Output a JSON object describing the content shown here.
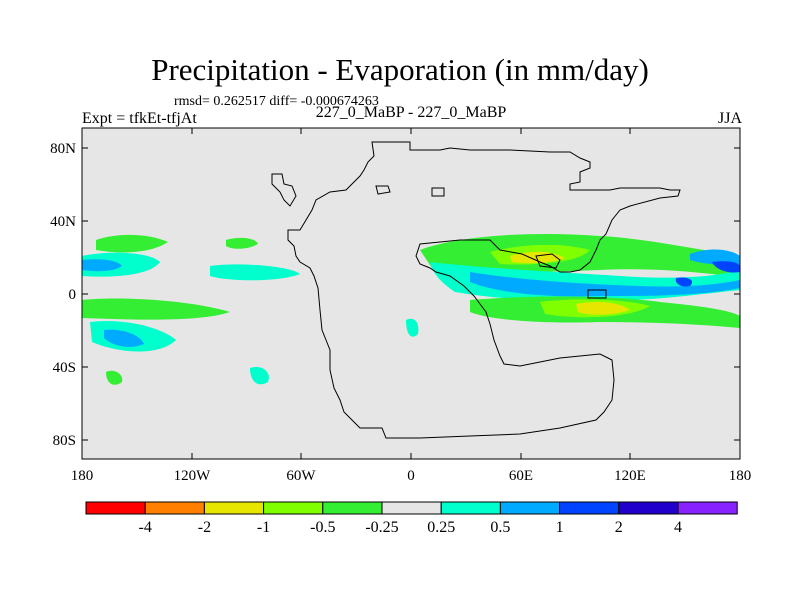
{
  "map": {
    "title": "Precipitation - Evaporation (in mm/day)",
    "stats_line": "rmsd= 0.262517  diff= -0.000674263",
    "left_string": "Expt = tfkEt-tfjAt",
    "center_string": "227_0_MaBP - 227_0_MaBP",
    "right_string": "JJA",
    "lat_ticks": [
      "80N",
      "40N",
      "0",
      "40S",
      "80S"
    ],
    "lon_ticks": [
      "180",
      "120W",
      "60W",
      "0",
      "60E",
      "120E",
      "180"
    ],
    "background_color": "#e6e6e6",
    "coastline_color": "#000000"
  },
  "colorbar": {
    "colors": [
      "#ff0000",
      "#ff8000",
      "#e6e600",
      "#80ff00",
      "#33ee33",
      "#e6e6e6",
      "#00ffcc",
      "#00aaff",
      "#0044ff",
      "#2200cc",
      "#8822ff"
    ],
    "labels": [
      "-4",
      "-2",
      "-1",
      "-0.5",
      "-0.25",
      "0.25",
      "0.5",
      "1",
      "2",
      "4"
    ]
  }
}
